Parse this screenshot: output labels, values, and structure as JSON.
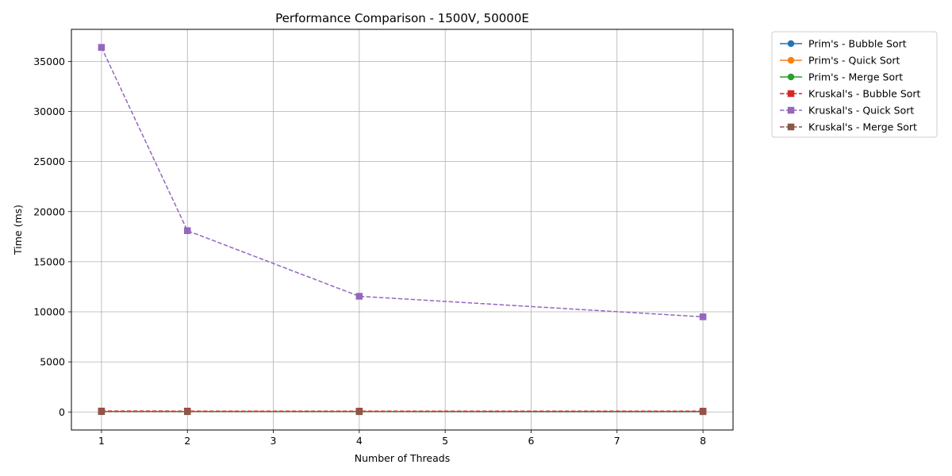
{
  "chart_data": {
    "type": "line",
    "title": "Performance Comparison - 1500V, 50000E",
    "xlabel": "Number of Threads",
    "ylabel": "Time (ms)",
    "x": [
      1,
      2,
      4,
      8
    ],
    "xlim": [
      0.65,
      8.35
    ],
    "ylim": [
      -1800,
      38200
    ],
    "xticks": [
      1,
      2,
      3,
      4,
      5,
      6,
      7,
      8
    ],
    "yticks": [
      0,
      5000,
      10000,
      15000,
      20000,
      25000,
      30000,
      35000
    ],
    "grid": true,
    "legend_position": "outside-top-right",
    "series": [
      {
        "name": "Prim's - Bubble Sort",
        "values": [
          40,
          38,
          37,
          36
        ],
        "color": "#1f77b4",
        "marker": "circle",
        "dash": "solid"
      },
      {
        "name": "Prim's - Quick Sort",
        "values": [
          45,
          42,
          40,
          39
        ],
        "color": "#ff7f0e",
        "marker": "circle",
        "dash": "solid"
      },
      {
        "name": "Prim's - Merge Sort",
        "values": [
          42,
          40,
          38,
          37
        ],
        "color": "#2ca02c",
        "marker": "circle",
        "dash": "solid"
      },
      {
        "name": "Kruskal's - Bubble Sort",
        "values": [
          90,
          85,
          80,
          78
        ],
        "color": "#d62728",
        "marker": "square",
        "dash": "dashed"
      },
      {
        "name": "Kruskal's - Quick Sort",
        "values": [
          36400,
          18100,
          11550,
          9500
        ],
        "color": "#9467bd",
        "marker": "square",
        "dash": "dashed"
      },
      {
        "name": "Kruskal's - Merge Sort",
        "values": [
          35,
          32,
          30,
          29
        ],
        "color": "#8c564b",
        "marker": "square",
        "dash": "dashed"
      }
    ]
  }
}
